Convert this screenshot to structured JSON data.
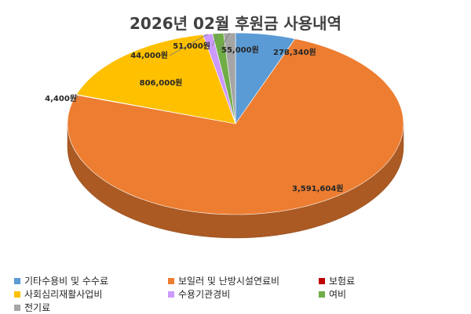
{
  "chart_data": {
    "type": "pie",
    "title": "2026년 02월 후원금 사용내역",
    "series": [
      {
        "name": "기타수용비 및 수수료",
        "value": 278340,
        "label": "278,340원",
        "color": "#5B9BD5"
      },
      {
        "name": "보일러 및 난방시설연료비",
        "value": 3591604,
        "label": "3,591,604원",
        "color": "#ED7D31"
      },
      {
        "name": "보험료",
        "value": 4400,
        "label": "4,400원",
        "color": "#C00000"
      },
      {
        "name": "사회심리재활사업비",
        "value": 806000,
        "label": "806,000원",
        "color": "#FFC000"
      },
      {
        "name": "수용기관경비",
        "value": 44000,
        "label": "44,000원",
        "color": "#CC99FF"
      },
      {
        "name": "여비",
        "value": 51000,
        "label": "51,000원",
        "color": "#70AD47"
      },
      {
        "name": "전기료",
        "value": 55000,
        "label": "55,000원",
        "color": "#A5A5A5"
      }
    ],
    "legend_position": "bottom"
  }
}
